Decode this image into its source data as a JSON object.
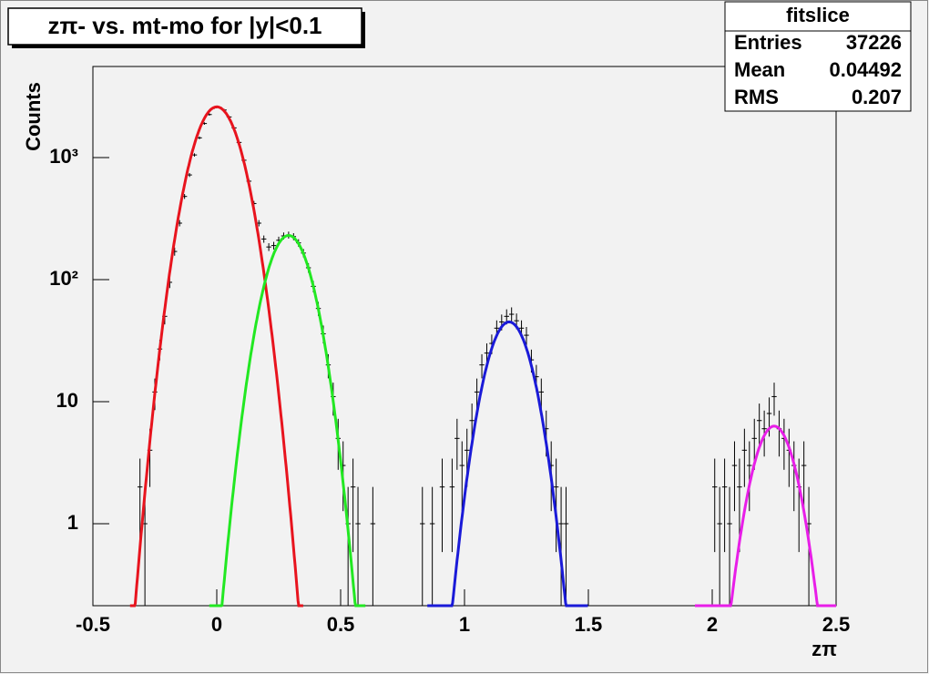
{
  "chart_data": {
    "type": "histogram-fit",
    "title": "zπ- vs. mt-mo for |y|<0.1",
    "x_label": "zπ",
    "y_label": "Counts",
    "log_y": true,
    "xlim": [
      -0.5,
      2.5
    ],
    "ylim": [
      0.213,
      5570
    ],
    "xticks": [
      -0.5,
      0,
      0.5,
      1,
      1.5,
      2,
      2.5
    ],
    "yticks": [
      1,
      10,
      {
        "value": 100,
        "label": "10²"
      },
      {
        "value": 1000,
        "label": "10³"
      }
    ],
    "bin_width": 0.02,
    "series": [
      {
        "color": "#000000",
        "x": [
          -0.31,
          -0.29,
          -0.27,
          -0.25,
          -0.23,
          -0.21,
          -0.19,
          -0.17,
          -0.15,
          -0.13,
          -0.11,
          -0.09,
          -0.07,
          -0.05,
          -0.03,
          -0.01,
          0.01,
          0.03,
          0.05,
          0.07,
          0.09,
          0.11,
          0.13,
          0.15,
          0.17,
          0.19,
          0.21,
          0.23,
          0.25,
          0.27,
          0.29,
          0.31,
          0.33,
          0.35,
          0.37,
          0.39,
          0.41,
          0.43,
          0.45,
          0.47,
          0.49,
          0.51,
          0.53,
          0.55,
          0.57,
          0.63,
          0.83,
          0.87,
          0.91,
          0.95,
          0.97,
          0.99,
          1.01,
          1.03,
          1.05,
          1.07,
          1.09,
          1.11,
          1.13,
          1.15,
          1.17,
          1.19,
          1.21,
          1.23,
          1.25,
          1.27,
          1.29,
          1.31,
          1.33,
          1.35,
          1.37,
          1.39,
          1.41,
          2.01,
          2.03,
          2.05,
          2.07,
          2.09,
          2.11,
          2.13,
          2.15,
          2.17,
          2.19,
          2.21,
          2.23,
          2.25,
          2.27,
          2.29,
          2.31,
          2.33,
          2.35,
          2.37,
          2.39
        ],
        "values": [
          2,
          1,
          4,
          12,
          27,
          50,
          95,
          170,
          290,
          480,
          720,
          1050,
          1450,
          1900,
          2250,
          2550,
          2580,
          2450,
          2150,
          1750,
          1330,
          950,
          640,
          420,
          290,
          215,
          185,
          190,
          210,
          228,
          232,
          225,
          200,
          165,
          125,
          88,
          58,
          36,
          20,
          11,
          5,
          3,
          1,
          2,
          1,
          1,
          1,
          1,
          2,
          2,
          5,
          3,
          4,
          7,
          12,
          20,
          25,
          30,
          40,
          45,
          50,
          52,
          46,
          40,
          35,
          22,
          16,
          12,
          6,
          3,
          2,
          1,
          1,
          2,
          1,
          2,
          1,
          3,
          2,
          4,
          3,
          5,
          7,
          6,
          8,
          11,
          6,
          5,
          4,
          3,
          2,
          3,
          1
        ]
      }
    ],
    "fits": [
      {
        "color": "#e8141e",
        "amplitude": 2600,
        "mean": 0,
        "sigma": 0.076,
        "xrange": [
          -0.35,
          0.35
        ]
      },
      {
        "color": "#22e822",
        "amplitude": 230,
        "mean": 0.29,
        "sigma": 0.072,
        "xrange": [
          -0.03,
          0.6
        ]
      },
      {
        "color": "#1a1ad8",
        "amplitude": 45,
        "mean": 1.18,
        "sigma": 0.07,
        "xrange": [
          0.85,
          1.5
        ]
      },
      {
        "color": "#e81ee8",
        "amplitude": 6.3,
        "mean": 2.25,
        "sigma": 0.067,
        "xrange": [
          1.93,
          2.5
        ]
      }
    ],
    "stats": {
      "title": "fitslice",
      "rows": [
        [
          "Entries",
          37226
        ],
        [
          "Mean",
          0.04492
        ],
        [
          "RMS",
          0.207
        ]
      ]
    }
  }
}
